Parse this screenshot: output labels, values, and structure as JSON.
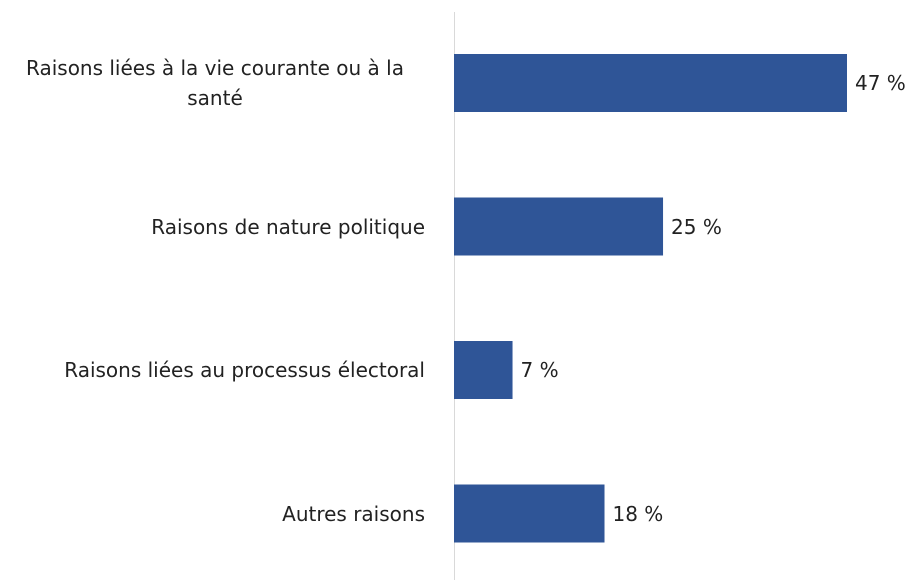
{
  "chart_data": {
    "type": "bar",
    "orientation": "horizontal",
    "categories": [
      "Raisons liées à la vie courante ou à la santé",
      "Raisons de nature politique",
      "Raisons liées au processus électoral",
      "Autres raisons"
    ],
    "values": [
      47,
      25,
      7,
      18
    ],
    "value_labels": [
      "47 %",
      "25 %",
      "7 %",
      "18 %"
    ],
    "color": "#2f5597"
  }
}
